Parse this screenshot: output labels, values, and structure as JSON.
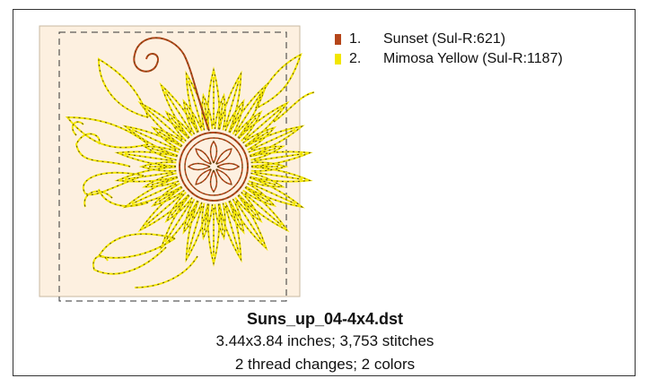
{
  "design": {
    "file_name": "Suns_up_04-4x4.dst",
    "threads": [
      {
        "number": "1.",
        "name": "Sunset (Sul-R:621)",
        "color": "#b5461a"
      },
      {
        "number": "2.",
        "name": "Mimosa Yellow (Sul-R:1187)",
        "color": "#f2e600"
      }
    ],
    "details": [
      "3.44x3.84 inches; 3,753 stitches",
      "2 thread changes; 2 colors"
    ]
  }
}
